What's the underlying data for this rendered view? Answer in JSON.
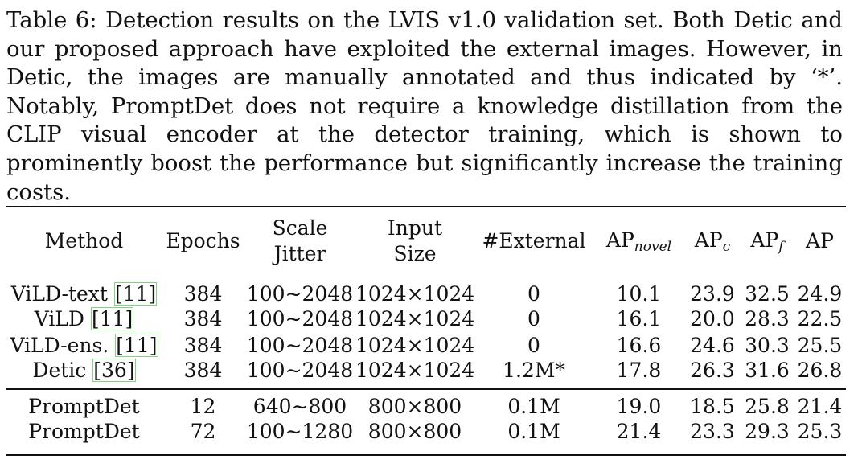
{
  "caption": "Table 6: Detection results on the LVIS v1.0 validation set. Both Detic and our proposed approach have exploited the external images. However, in Detic, the images are manually annotated and thus indicated by ‘*’. Notably, PromptDet does not require a knowledge distillation from the CLIP visual encoder at the detector training, which is shown to prominently boost the performance but significantly increase the training costs.",
  "headers": {
    "method": "Method",
    "epochs": "Epochs",
    "scale_1": "Scale",
    "scale_2": "Jitter",
    "input_1": "Input",
    "input_2": "Size",
    "external": "#External",
    "ap_novel_base": "AP",
    "ap_novel_sub": "novel",
    "ap_c_base": "AP",
    "ap_c_sub": "c",
    "ap_f_base": "AP",
    "ap_f_sub": "f",
    "ap": "AP"
  },
  "rows": [
    {
      "method": "ViLD-text",
      "ref": "[11]",
      "epochs": "384",
      "scale": "100∼2048",
      "input": "1024×1024",
      "external": "0",
      "ap_novel": "10.1",
      "ap_c": "23.9",
      "ap_f": "32.5",
      "ap": "24.9"
    },
    {
      "method": "ViLD",
      "ref": "[11]",
      "epochs": "384",
      "scale": "100∼2048",
      "input": "1024×1024",
      "external": "0",
      "ap_novel": "16.1",
      "ap_c": "20.0",
      "ap_f": "28.3",
      "ap": "22.5"
    },
    {
      "method": "ViLD-ens.",
      "ref": "[11]",
      "epochs": "384",
      "scale": "100∼2048",
      "input": "1024×1024",
      "external": "0",
      "ap_novel": "16.6",
      "ap_c": "24.6",
      "ap_f": "30.3",
      "ap": "25.5"
    },
    {
      "method": "Detic",
      "ref": "[36]",
      "epochs": "384",
      "scale": "100∼2048",
      "input": "1024×1024",
      "external": "1.2M*",
      "ap_novel": "17.8",
      "ap_c": "26.3",
      "ap_f": "31.6",
      "ap": "26.8"
    },
    {
      "method": "PromptDet",
      "epochs": "12",
      "scale": "640∼800",
      "input": "800×800",
      "external": "0.1M",
      "ap_novel": "19.0",
      "ap_c": "18.5",
      "ap_f": "25.8",
      "ap": "21.4"
    },
    {
      "method": "PromptDet",
      "epochs": "72",
      "scale": "100∼1280",
      "input": "800×800",
      "external": "0.1M",
      "ap_novel": "21.4",
      "ap_c": "23.3",
      "ap_f": "29.3",
      "ap": "25.3"
    }
  ]
}
